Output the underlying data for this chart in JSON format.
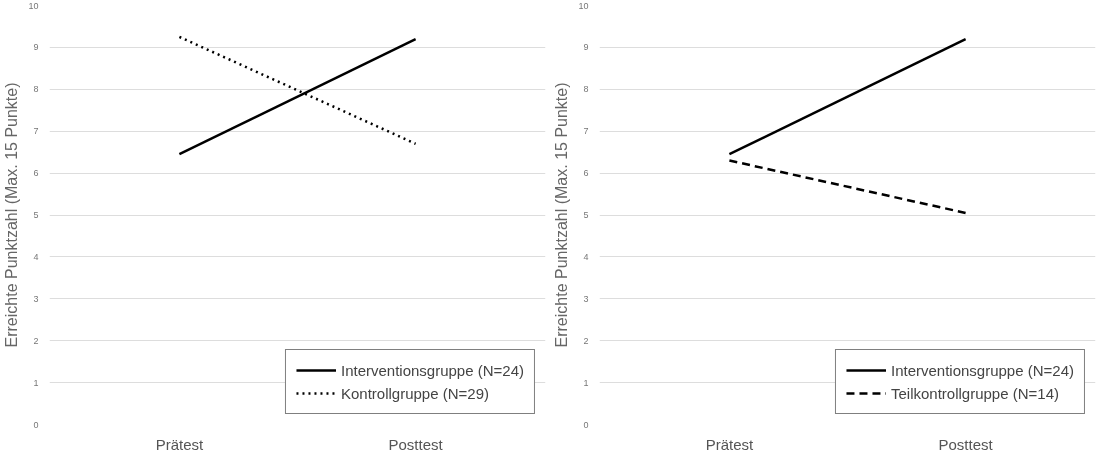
{
  "chart_data": [
    {
      "type": "line",
      "ylabel": "Erreichte Punktzahl (Max. 15 Punkte)",
      "categories": [
        "Prätest",
        "Posttest"
      ],
      "ylim": [
        0,
        10
      ],
      "yticks": [
        0,
        1,
        2,
        3,
        4,
        5,
        6,
        7,
        8,
        9,
        10
      ],
      "grid": "y",
      "legend": "bottom right",
      "series": [
        {
          "name": "Interventionsgruppe (N=24)",
          "color": "#000000",
          "line_style": "solid",
          "values": [
            6.45,
            9.2
          ]
        },
        {
          "name": "Kontrollgruppe (N=29)",
          "color": "#000000",
          "line_style": "dotted",
          "values": [
            9.25,
            6.7
          ]
        }
      ]
    },
    {
      "type": "line",
      "ylabel": "Erreichte Punktzahl (Max. 15 Punkte)",
      "categories": [
        "Prätest",
        "Posttest"
      ],
      "ylim": [
        0,
        10
      ],
      "yticks": [
        0,
        1,
        2,
        3,
        4,
        5,
        6,
        7,
        8,
        9,
        10
      ],
      "grid": "y",
      "legend": "bottom right",
      "series": [
        {
          "name": "Interventionsgruppe (N=24)",
          "color": "#000000",
          "line_style": "solid",
          "values": [
            6.45,
            9.2
          ]
        },
        {
          "name": "Teilkontrollgruppe (N=14)",
          "color": "#000000",
          "line_style": "dashed",
          "values": [
            6.3,
            5.05
          ]
        }
      ]
    }
  ]
}
